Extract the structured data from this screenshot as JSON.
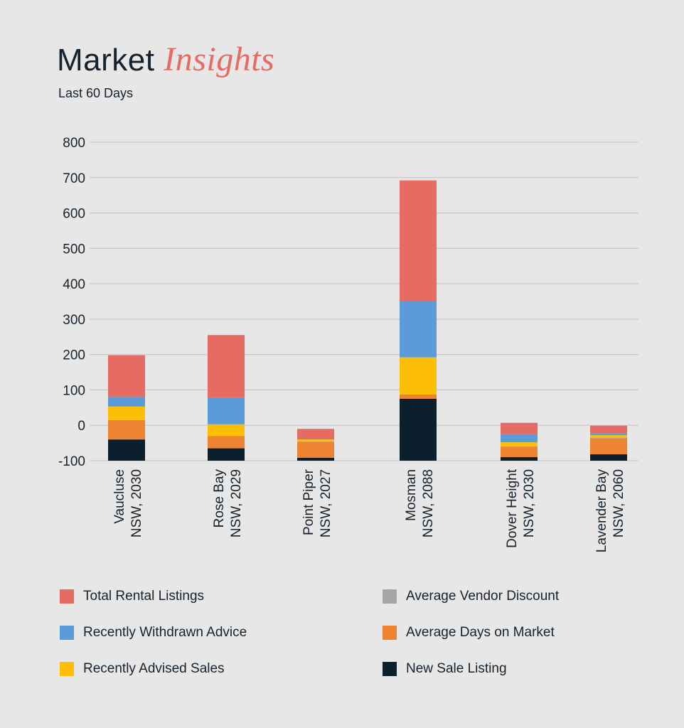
{
  "header": {
    "title_main": "Market",
    "title_accent": "Insights",
    "subtitle": "Last 60 Days"
  },
  "colors": {
    "total_rental": "#e56b63",
    "withdrawn": "#5b9bd8",
    "advised_sales": "#fdbf05",
    "vendor_discount": "#a5a5a5",
    "days_on_market": "#ee8332",
    "new_sale": "#0c1f2c",
    "grid": "#c9c9c9"
  },
  "legend": [
    {
      "label": "Total Rental Listings",
      "color": "#e56b63"
    },
    {
      "label": "Average Vendor Discount",
      "color": "#a5a5a5"
    },
    {
      "label": "Recently Withdrawn Advice",
      "color": "#5b9bd8"
    },
    {
      "label": "Average Days on Market",
      "color": "#ee8332"
    },
    {
      "label": "Recently Advised Sales",
      "color": "#fdbf05"
    },
    {
      "label": "New Sale Listing",
      "color": "#0c1f2c"
    }
  ],
  "chart_data": {
    "type": "bar",
    "stacked": true,
    "title": "Market Insights",
    "subtitle": "Last 60 Days",
    "xlabel": "",
    "ylabel": "",
    "ylim": [
      -100,
      800
    ],
    "yticks": [
      "800",
      "700",
      "600",
      "500",
      "400",
      "300",
      "200",
      "100",
      "0",
      "-100"
    ],
    "categories": [
      [
        "Vaucluse",
        "NSW, 2030"
      ],
      [
        "Rose Bay",
        "NSW, 2029"
      ],
      [
        "Point Piper",
        "NSW, 2027"
      ],
      [
        "Mosman",
        "NSW, 2088"
      ],
      [
        "Dover Height",
        "NSW, 2030"
      ],
      [
        "Lavender Bay",
        "NSW, 2060"
      ]
    ],
    "series": [
      {
        "name": "New Sale Listing",
        "color": "#0c1f2c",
        "values": [
          60,
          35,
          8,
          175,
          10,
          18
        ]
      },
      {
        "name": "Average Days on Market",
        "color": "#ee8332",
        "values": [
          55,
          35,
          45,
          12,
          30,
          45
        ]
      },
      {
        "name": "Average Vendor Discount",
        "color": "#a5a5a5",
        "values": [
          0,
          0,
          2,
          0,
          0,
          2
        ]
      },
      {
        "name": "Recently Advised Sales",
        "color": "#fdbf05",
        "values": [
          38,
          33,
          5,
          105,
          12,
          7
        ]
      },
      {
        "name": "Recently Withdrawn Advice",
        "color": "#5b9bd8",
        "values": [
          27,
          75,
          0,
          160,
          23,
          5
        ]
      },
      {
        "name": "Total Rental Listings",
        "color": "#e56b63",
        "values": [
          118,
          177,
          30,
          340,
          32,
          22
        ]
      }
    ],
    "legend_position": "bottom",
    "grid": true
  }
}
